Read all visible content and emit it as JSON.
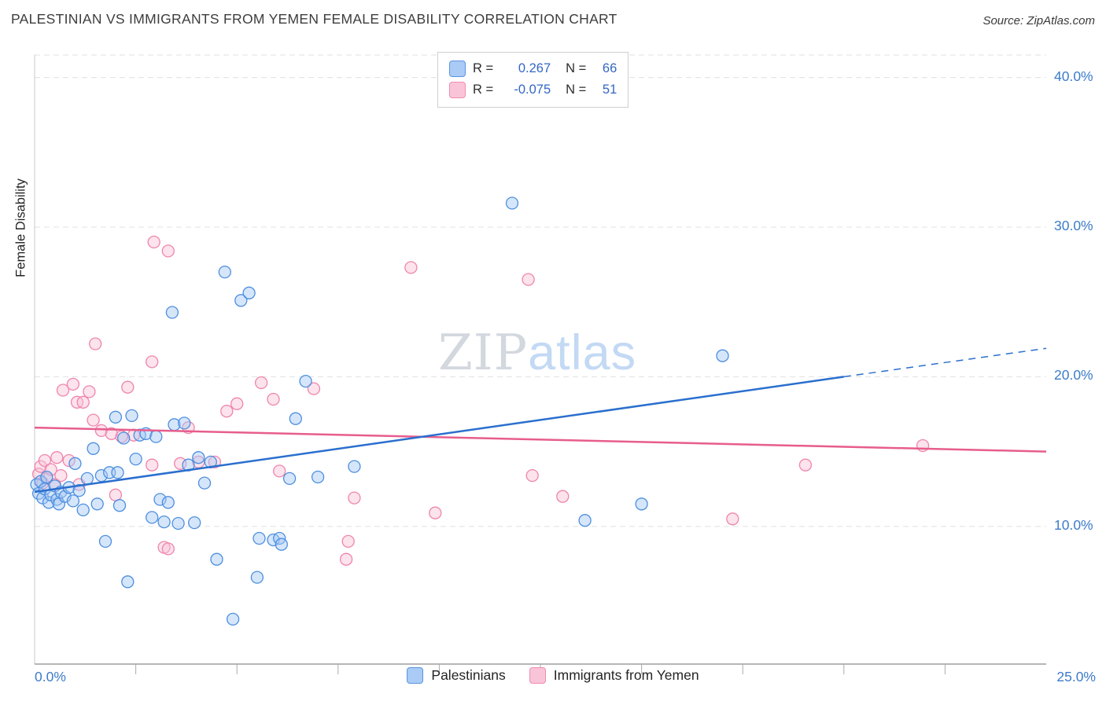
{
  "header": {
    "title": "PALESTINIAN VS IMMIGRANTS FROM YEMEN FEMALE DISABILITY CORRELATION CHART",
    "source": "Source: ZipAtlas.com"
  },
  "correlation_box": {
    "rows": [
      {
        "series": "Palestinians",
        "r_label": "R =",
        "r_value": "0.267",
        "n_label": "N =",
        "n_value": "66"
      },
      {
        "series": "Immigrants from Yemen",
        "r_label": "R =",
        "r_value": "-0.075",
        "n_label": "N =",
        "n_value": "51"
      }
    ]
  },
  "axes": {
    "y_title": "Female Disability",
    "x_min_label": "0.0%",
    "x_max_label": "25.0%"
  },
  "bottom_legend": {
    "items": [
      {
        "label": "Palestinians"
      },
      {
        "label": "Immigrants from Yemen"
      }
    ]
  },
  "watermark": {
    "zip": "ZIP",
    "atlas": "atlas"
  },
  "colors": {
    "palestinians_fill": "#a5c8f5",
    "palestinians_stroke": "#4d8fe0",
    "palestinians_trend": "#2a6fce",
    "yemen_fill": "#f8c0d4",
    "yemen_stroke": "#ef85ad",
    "yemen_trend": "#e75d8d",
    "axis_label_blue": "#3d7cc9"
  },
  "chart_data": {
    "type": "scatter",
    "title": "PALESTINIAN VS IMMIGRANTS FROM YEMEN FEMALE DISABILITY CORRELATION CHART",
    "xlabel": "",
    "ylabel": "Female Disability",
    "xlim": [
      0,
      25
    ],
    "ylim": [
      0.8,
      41.5
    ],
    "grid": "horizontal-dashed",
    "legend_position": "bottom",
    "y_ticks": [
      {
        "value": 40,
        "label": "40.0%"
      },
      {
        "value": 30,
        "label": "30.0%"
      },
      {
        "value": 20,
        "label": "20.0%"
      },
      {
        "value": 10,
        "label": "10.0%"
      }
    ],
    "x_ticks": [
      {
        "value": 0,
        "label": "0.0%"
      },
      {
        "value": 25,
        "label": "25.0%"
      }
    ],
    "x_minor_ticks": [
      2.5,
      5,
      7.5,
      10,
      12.5,
      15,
      17.5,
      20,
      22.5
    ],
    "series": [
      {
        "id": "palestinians",
        "name": "Palestinians",
        "R": 0.267,
        "N": 66,
        "fill": "#a5c8f5",
        "stroke": "#4d8fe0",
        "line": "#2a6fce",
        "trend": {
          "solid": [
            [
              0,
              12.3
            ],
            [
              20,
              20.0
            ]
          ],
          "dashed": [
            [
              20,
              20.0
            ],
            [
              25,
              21.9
            ]
          ]
        },
        "points": [
          [
            0.05,
            12.8
          ],
          [
            0.1,
            12.2
          ],
          [
            0.15,
            13.0
          ],
          [
            0.2,
            11.9
          ],
          [
            0.25,
            12.5
          ],
          [
            0.3,
            13.3
          ],
          [
            0.35,
            11.6
          ],
          [
            0.4,
            12.1
          ],
          [
            0.5,
            12.7
          ],
          [
            0.55,
            11.8
          ],
          [
            0.6,
            11.5
          ],
          [
            0.65,
            12.3
          ],
          [
            0.75,
            12.0
          ],
          [
            0.85,
            12.6
          ],
          [
            0.95,
            11.7
          ],
          [
            1.0,
            14.2
          ],
          [
            1.1,
            12.4
          ],
          [
            1.2,
            11.1
          ],
          [
            1.3,
            13.2
          ],
          [
            1.45,
            15.2
          ],
          [
            1.55,
            11.5
          ],
          [
            1.65,
            13.4
          ],
          [
            1.75,
            9.0
          ],
          [
            1.85,
            13.6
          ],
          [
            2.0,
            17.3
          ],
          [
            2.05,
            13.6
          ],
          [
            2.1,
            11.4
          ],
          [
            2.2,
            15.9
          ],
          [
            2.3,
            6.3
          ],
          [
            2.4,
            17.4
          ],
          [
            2.5,
            14.5
          ],
          [
            2.6,
            16.1
          ],
          [
            2.75,
            16.2
          ],
          [
            2.9,
            10.6
          ],
          [
            3.0,
            16.0
          ],
          [
            3.1,
            11.8
          ],
          [
            3.2,
            10.3
          ],
          [
            3.3,
            11.6
          ],
          [
            3.4,
            24.3
          ],
          [
            3.45,
            16.8
          ],
          [
            3.55,
            10.2
          ],
          [
            3.7,
            16.9
          ],
          [
            3.8,
            14.1
          ],
          [
            3.95,
            10.25
          ],
          [
            4.05,
            14.6
          ],
          [
            4.2,
            12.9
          ],
          [
            4.35,
            14.3
          ],
          [
            4.5,
            7.8
          ],
          [
            4.7,
            27.0
          ],
          [
            4.9,
            3.8
          ],
          [
            5.1,
            25.1
          ],
          [
            5.3,
            25.6
          ],
          [
            5.5,
            6.6
          ],
          [
            5.55,
            9.2
          ],
          [
            5.9,
            9.1
          ],
          [
            6.05,
            9.2
          ],
          [
            6.1,
            8.8
          ],
          [
            6.3,
            13.2
          ],
          [
            6.45,
            17.2
          ],
          [
            6.7,
            19.7
          ],
          [
            7.0,
            13.3
          ],
          [
            7.9,
            14.0
          ],
          [
            11.8,
            31.6
          ],
          [
            13.6,
            10.4
          ],
          [
            15.0,
            11.5
          ],
          [
            17.0,
            21.4
          ]
        ]
      },
      {
        "id": "yemen",
        "name": "Immigrants from Yemen",
        "R": -0.075,
        "N": 51,
        "fill": "#f8c0d4",
        "stroke": "#ef85ad",
        "line": "#e75d8d",
        "trend": {
          "solid": [
            [
              0,
              16.6
            ],
            [
              25,
              15.0
            ]
          ]
        },
        "points": [
          [
            0.1,
            13.5
          ],
          [
            0.15,
            14.0
          ],
          [
            0.2,
            12.9
          ],
          [
            0.25,
            14.4
          ],
          [
            0.3,
            13.2
          ],
          [
            0.4,
            13.8
          ],
          [
            0.5,
            12.8
          ],
          [
            0.55,
            14.6
          ],
          [
            0.65,
            13.4
          ],
          [
            0.7,
            19.1
          ],
          [
            0.85,
            14.4
          ],
          [
            0.95,
            19.5
          ],
          [
            1.05,
            18.3
          ],
          [
            1.1,
            12.8
          ],
          [
            1.2,
            18.3
          ],
          [
            1.35,
            19.0
          ],
          [
            1.45,
            17.1
          ],
          [
            1.5,
            22.2
          ],
          [
            1.65,
            16.4
          ],
          [
            1.9,
            16.2
          ],
          [
            2.0,
            12.1
          ],
          [
            2.15,
            16.0
          ],
          [
            2.3,
            19.3
          ],
          [
            2.45,
            16.1
          ],
          [
            2.9,
            21.0
          ],
          [
            2.95,
            29.0
          ],
          [
            3.3,
            28.4
          ],
          [
            3.2,
            8.6
          ],
          [
            3.3,
            8.5
          ],
          [
            2.9,
            14.1
          ],
          [
            3.6,
            14.2
          ],
          [
            3.8,
            16.6
          ],
          [
            4.05,
            14.3
          ],
          [
            4.45,
            14.3
          ],
          [
            4.75,
            17.7
          ],
          [
            5.0,
            18.2
          ],
          [
            5.6,
            19.6
          ],
          [
            5.9,
            18.5
          ],
          [
            6.05,
            13.7
          ],
          [
            6.9,
            19.2
          ],
          [
            7.7,
            7.8
          ],
          [
            7.75,
            9.0
          ],
          [
            7.9,
            11.9
          ],
          [
            9.3,
            27.3
          ],
          [
            9.9,
            10.9
          ],
          [
            12.2,
            26.5
          ],
          [
            12.3,
            13.4
          ],
          [
            13.05,
            12.0
          ],
          [
            17.25,
            10.5
          ],
          [
            19.05,
            14.1
          ],
          [
            21.95,
            15.4
          ]
        ]
      }
    ]
  }
}
